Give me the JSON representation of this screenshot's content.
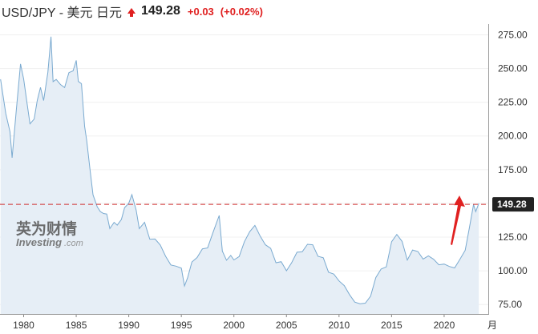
{
  "header": {
    "pair": "USD/JPY - 美元 日元",
    "price": "149.28",
    "change": "+0.03",
    "change_pct": "(+0.02%)",
    "up_color": "#e02020"
  },
  "watermark": {
    "cn": "英为财情",
    "en": "Investing",
    "suffix": ".com"
  },
  "annotation": {
    "arrow_color": "#e02020",
    "points_to": "149.28"
  },
  "chart_data": {
    "type": "area",
    "title": "",
    "xlabel": "",
    "ylabel": "",
    "x_unit_label": "月",
    "xlim": [
      1977.75,
      2024.2
    ],
    "ylim": [
      68,
      283
    ],
    "x_ticks": [
      "1980",
      "1985",
      "1990",
      "1995",
      "2000",
      "2005",
      "2010",
      "2015",
      "2020"
    ],
    "y_ticks": [
      "75.00",
      "100.00",
      "125.00",
      "150.00",
      "175.00",
      "200.00",
      "225.00",
      "250.00",
      "275.00"
    ],
    "current_price": 149.28,
    "current_label": "149.28",
    "line_color": "#7aaad0",
    "fill_color": "#e6eef6",
    "reference_line_color": "#d03030",
    "series": [
      {
        "x": [
          1977.8,
          1978.3,
          1978.7,
          1978.9,
          1979.3,
          1979.7,
          1980.0,
          1980.3,
          1980.6,
          1981.0,
          1981.3,
          1981.6,
          1981.9,
          1982.3,
          1982.6,
          1982.8,
          1983.1,
          1983.5,
          1983.9,
          1984.3,
          1984.7,
          1985.0,
          1985.2,
          1985.5,
          1985.8,
          1986.0,
          1986.3,
          1986.6,
          1987.0,
          1987.3,
          1987.6,
          1987.9,
          1988.2,
          1988.6,
          1988.9,
          1989.3,
          1989.6,
          1990.0,
          1990.3,
          1990.7,
          1991.0,
          1991.5,
          1992.0,
          1992.5,
          1993.0,
          1993.5,
          1994.0,
          1994.5,
          1995.0,
          1995.3,
          1995.6,
          1996.0,
          1996.5,
          1997.0,
          1997.5,
          1998.0,
          1998.6,
          1998.9,
          1999.3,
          1999.7,
          2000.0,
          2000.5,
          2001.0,
          2001.5,
          2002.0,
          2002.5,
          2003.0,
          2003.5,
          2004.0,
          2004.5,
          2005.0,
          2005.5,
          2006.0,
          2006.5,
          2007.0,
          2007.5,
          2008.0,
          2008.5,
          2009.0,
          2009.5,
          2010.0,
          2010.5,
          2011.0,
          2011.5,
          2012.0,
          2012.5,
          2013.0,
          2013.5,
          2014.0,
          2014.5,
          2015.0,
          2015.5,
          2016.0,
          2016.5,
          2017.0,
          2017.5,
          2018.0,
          2018.5,
          2019.0,
          2019.5,
          2020.0,
          2020.5,
          2021.0,
          2021.5,
          2022.0,
          2022.4,
          2022.8,
          2023.0,
          2023.3
        ],
        "values": [
          242,
          215,
          200,
          180,
          215,
          250,
          240,
          225,
          210,
          215,
          230,
          240,
          230,
          250,
          275,
          240,
          240,
          235,
          232,
          243,
          245,
          254,
          240,
          240,
          210,
          200,
          180,
          160,
          150,
          145,
          142,
          140,
          128,
          132,
          130,
          135,
          145,
          150,
          158,
          148,
          135,
          140,
          127,
          126,
          120,
          110,
          102,
          100,
          98,
          85,
          92,
          105,
          110,
          118,
          120,
          132,
          145,
          118,
          110,
          112,
          107,
          108,
          118,
          125,
          130,
          123,
          118,
          117,
          108,
          110,
          104,
          110,
          117,
          116,
          120,
          118,
          108,
          106,
          95,
          94,
          90,
          88,
          83,
          79,
          79,
          80,
          85,
          98,
          103,
          103,
          120,
          124,
          118,
          104,
          112,
          112,
          108,
          112,
          111,
          108,
          109,
          107,
          105,
          110,
          115,
          130,
          146,
          140,
          150
        ]
      }
    ]
  }
}
